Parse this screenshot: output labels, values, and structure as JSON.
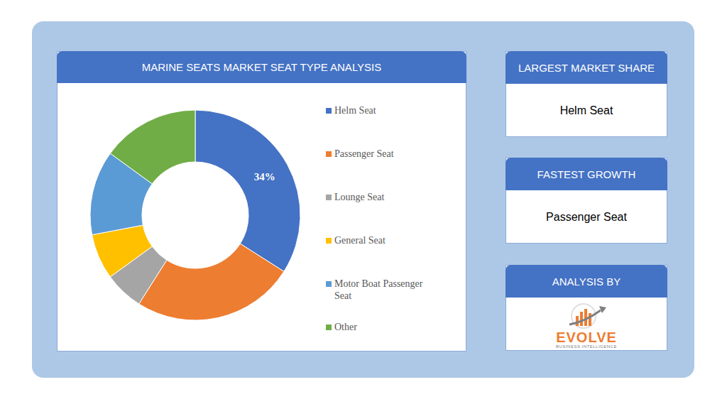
{
  "chart_data": {
    "type": "pie",
    "title": "MARINE SEATS MARKET SEAT TYPE ANALYSIS",
    "categories": [
      "Helm Seat",
      "Passenger Seat",
      "Lounge Seat",
      "General Seat",
      "Motor Boat Passenger Seat",
      "Other"
    ],
    "values": [
      34,
      25,
      6,
      7,
      13,
      15
    ],
    "value_labels": [
      "34%",
      null,
      null,
      null,
      null,
      null
    ],
    "colors": [
      "#4472c4",
      "#ed7d31",
      "#a5a5a5",
      "#ffc000",
      "#5b9bd5",
      "#70ad47"
    ],
    "legend": "right"
  },
  "panels": [
    {
      "title": "LARGEST MARKET SHARE",
      "text": "Helm Seat"
    },
    {
      "title": "FASTEST GROWTH",
      "text": "Passenger Seat"
    },
    {
      "title": "ANALYSIS BY",
      "logo": {
        "name": "EVOLVE",
        "tagline": "BUSINESS INTELLIGENCE"
      }
    }
  ]
}
